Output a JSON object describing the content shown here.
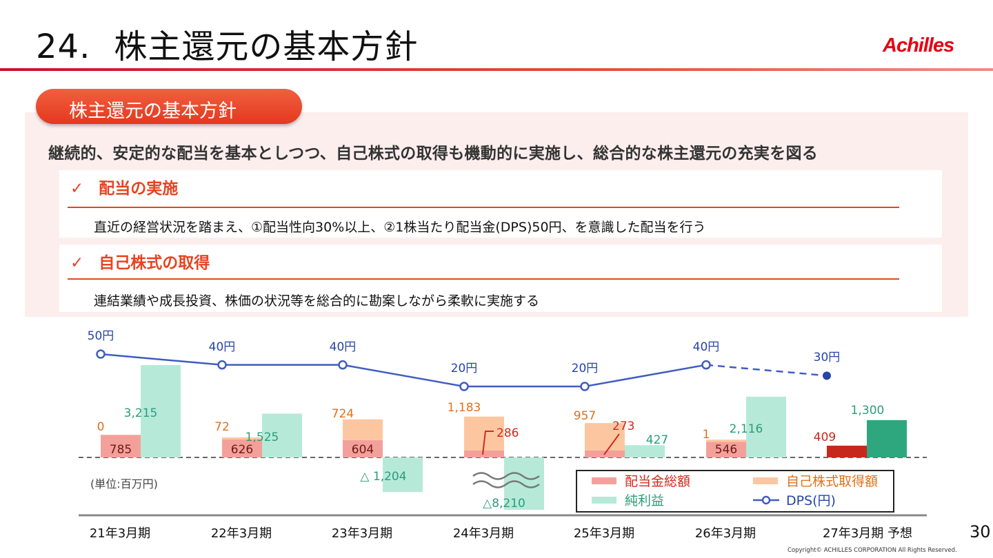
{
  "slide": {
    "number": "24.",
    "title": "株主還元の基本方針",
    "logo": "Achilles",
    "page_number": "30",
    "copyright": "Copyright© ACHILLES CORPORATION All Rights Reserved."
  },
  "panel": {
    "pill_label": "株主還元の基本方針",
    "policy": "継続的、安定的な配当を基本としつつ、自己株式の取得も機動的に実施し、総合的な株主還元の充実を図る",
    "items": [
      {
        "check": "✓",
        "heading": "配当の実施",
        "description": "直近の経営状況を踏まえ、①配当性向30%以上、②1株当たり配当金(DPS)50円、を意識した配当を行う"
      },
      {
        "check": "✓",
        "heading": "自己株式の取得",
        "description": "連結業績や成長投資、株価の状況等を総合的に勘案しながら柔軟に実施する"
      }
    ]
  },
  "chart_data": {
    "type": "bar",
    "unit_label": "(単位:百万円)",
    "categories": [
      "21年3月期",
      "22年3月期",
      "23年3月期",
      "24年3月期",
      "25年3月期",
      "26年3月期",
      "27年3月期 予想"
    ],
    "series": [
      {
        "name": "配当金総額",
        "values": [
          785,
          626,
          604,
          null,
          null,
          546,
          409
        ],
        "labels": [
          "785",
          "626",
          "604",
          "",
          "",
          "546",
          "409"
        ],
        "color": "#f4a09a",
        "forecast_color": "#c8281c"
      },
      {
        "name": "自己株式取得額",
        "values": [
          0,
          72,
          724,
          1183,
          957,
          1,
          null
        ],
        "labels": [
          "0",
          "72",
          "724",
          "1,183",
          "957",
          "1",
          ""
        ],
        "color": "#fcc7a0"
      },
      {
        "name": "純利益",
        "values": [
          3215,
          1525,
          -1204,
          -8210,
          427,
          2116,
          1300
        ],
        "labels": [
          "3,215",
          "1,525",
          "△ 1,204",
          "△8,210",
          "427",
          "2,116",
          "1,300"
        ],
        "color": "#b7e9d9",
        "forecast_color": "#2ea77f"
      },
      {
        "name": "DPS(円)",
        "values": [
          50,
          40,
          40,
          20,
          20,
          40,
          30
        ],
        "labels": [
          "50円",
          "40円",
          "40円",
          "20円",
          "20円",
          "40円",
          "30円"
        ],
        "color": "#3f5cc0"
      }
    ],
    "annotations": [
      "286",
      "273"
    ],
    "legend": [
      "配当金総額",
      "自己株式取得額",
      "純利益",
      "DPS(円)"
    ],
    "legend_position": "bottom-right"
  }
}
